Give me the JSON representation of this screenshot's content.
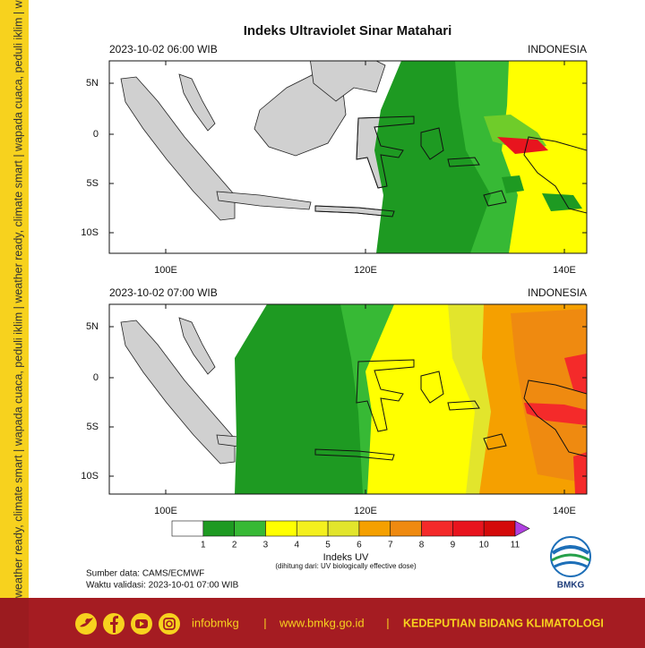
{
  "title": "Indeks Ultraviolet Sinar Matahari",
  "sidebar_text": "weather ready, climate smart | wapada cuaca, peduli iklim | weather ready, climate smart | wapada cuaca, peduli iklim | weather ready, climate smart",
  "panels": [
    {
      "time": "2023-10-02  06:00 WIB",
      "region": "INDONESIA",
      "lat_labels": [
        "5N",
        "0",
        "5S",
        "10S"
      ],
      "lon_labels": [
        "100E",
        "120E",
        "140E"
      ]
    },
    {
      "time": "2023-10-02  07:00 WIB",
      "region": "INDONESIA",
      "lat_labels": [
        "5N",
        "0",
        "5S",
        "10S"
      ],
      "lon_labels": [
        "100E",
        "120E",
        "140E"
      ]
    }
  ],
  "colorbar": {
    "label": "Indeks UV",
    "note": "(dihitung dari: UV biologically effective dose)",
    "levels": [
      1,
      2,
      3,
      4,
      5,
      6,
      7,
      8,
      9,
      10,
      11
    ],
    "colors": [
      "#ffffff",
      "#1e9a22",
      "#37b935",
      "#ffff00",
      "#f4f01e",
      "#e2e52c",
      "#f5a000",
      "#ef8a10",
      "#f42a2a",
      "#e8141e",
      "#d40a0a",
      "#b040e0"
    ]
  },
  "source": "Sumber data: CAMS/ECMWF",
  "validity": "Waktu validasi: 2023-10-01 07:00 WIB",
  "logo": "BMKG",
  "footer": {
    "handle": "infobmkg",
    "separator": "|",
    "website": "www.bmkg.go.id",
    "department": "KEDEPUTIAN BIDANG KLIMATOLOGI"
  }
}
